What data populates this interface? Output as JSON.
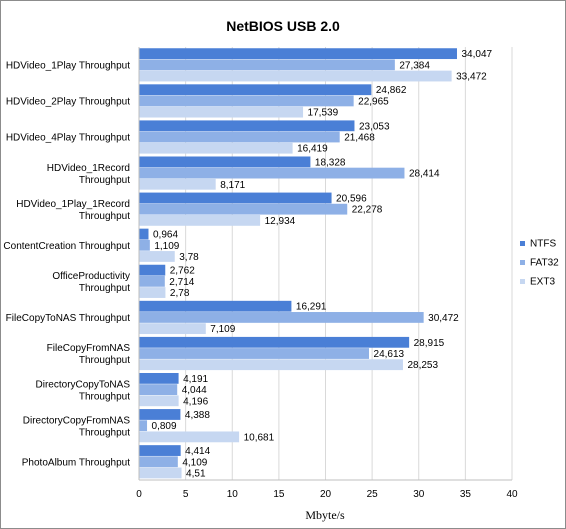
{
  "chart_data": {
    "type": "bar",
    "orientation": "horizontal",
    "title": "NetBIOS USB 2.0",
    "xlabel": "Mbyte/s",
    "ylabel": "",
    "xlim": [
      0,
      40
    ],
    "xticks": [
      "0",
      "5",
      "10",
      "15",
      "20",
      "25",
      "30",
      "35",
      "40"
    ],
    "grid": true,
    "legend_position": "right",
    "categories": [
      [
        "HDVideo_1Play Throughput"
      ],
      [
        "HDVideo_2Play Throughput"
      ],
      [
        "HDVideo_4Play Throughput"
      ],
      [
        "HDVideo_1Record",
        "Throughput"
      ],
      [
        "HDVideo_1Play_1Record",
        "Throughput"
      ],
      [
        "ContentCreation Throughput"
      ],
      [
        "OfficeProductivity",
        "Throughput"
      ],
      [
        "FileCopyToNAS Throughput"
      ],
      [
        "FileCopyFromNAS",
        "Throughput"
      ],
      [
        "DirectoryCopyToNAS",
        "Throughput"
      ],
      [
        "DirectoryCopyFromNAS",
        "Throughput"
      ],
      [
        "PhotoAlbum Throughput"
      ]
    ],
    "series": [
      {
        "name": "NTFS",
        "color": "#4a7fd6",
        "values": [
          34.047,
          24.862,
          23.053,
          18.328,
          20.596,
          0.964,
          2.762,
          16.291,
          28.915,
          4.191,
          4.388,
          4.414
        ],
        "labels": [
          "34,047",
          "24,862",
          "23,053",
          "18,328",
          "20,596",
          "0,964",
          "2,762",
          "16,291",
          "28,915",
          "4,191",
          "4,388",
          "4,414"
        ]
      },
      {
        "name": "FAT32",
        "color": "#8eb0e6",
        "values": [
          27.384,
          22.965,
          21.468,
          28.414,
          22.278,
          1.109,
          2.714,
          30.472,
          24.613,
          4.044,
          0.809,
          4.109
        ],
        "labels": [
          "27,384",
          "22,965",
          "21,468",
          "28,414",
          "22,278",
          "1,109",
          "2,714",
          "30,472",
          "24,613",
          "4,044",
          "0,809",
          "4,109"
        ]
      },
      {
        "name": "EXT3",
        "color": "#c6d7f1",
        "values": [
          33.472,
          17.539,
          16.419,
          8.171,
          12.934,
          3.78,
          2.78,
          7.109,
          28.253,
          4.196,
          10.681,
          4.51
        ],
        "labels": [
          "33,472",
          "17,539",
          "16,419",
          "8,171",
          "12,934",
          "3,78",
          "2,78",
          "7,109",
          "28,253",
          "4,196",
          "10,681",
          "4,51"
        ]
      }
    ]
  }
}
